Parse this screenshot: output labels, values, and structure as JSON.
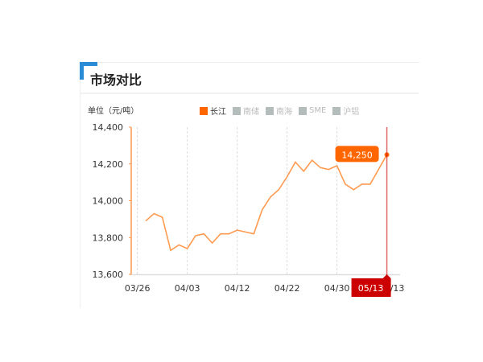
{
  "section_title": "市场对比",
  "colors": {
    "accent": "#2a8bd6",
    "series": "#ff9a50",
    "marker": "#ff6600",
    "crosshair": "#cc0000"
  },
  "legend": [
    {
      "label": "长江",
      "active": true
    },
    {
      "label": "南储",
      "active": false
    },
    {
      "label": "南海",
      "active": false
    },
    {
      "label": "SME",
      "active": false
    },
    {
      "label": "沪铝",
      "active": false
    }
  ],
  "chart_data": {
    "type": "line",
    "ylabel": "单位（元/吨）",
    "ylim": [
      13600,
      14400
    ],
    "yticks": [
      "13,600",
      "13,800",
      "14,000",
      "14,200",
      "14,400"
    ],
    "ytick_values": [
      13600,
      13800,
      14000,
      14200,
      14400
    ],
    "xticks": [
      {
        "label": "03/26",
        "index": -1
      },
      {
        "label": "04/03",
        "index": 5
      },
      {
        "label": "04/12",
        "index": 11
      },
      {
        "label": "04/22",
        "index": 17
      },
      {
        "label": "04/30",
        "index": 23
      },
      {
        "label": "05/13",
        "index": 29
      }
    ],
    "grid": "vertical-dashed",
    "series": [
      {
        "name": "长江",
        "values": [
          13890,
          13930,
          13910,
          13730,
          13760,
          13740,
          13810,
          13820,
          13770,
          13820,
          13820,
          13840,
          13830,
          13820,
          13950,
          14020,
          14060,
          14130,
          14210,
          14160,
          14220,
          14180,
          14170,
          14190,
          14090,
          14060,
          14090,
          14090,
          14170,
          14250
        ]
      }
    ],
    "tooltip": {
      "value": "14,250",
      "date": "05/13"
    }
  }
}
